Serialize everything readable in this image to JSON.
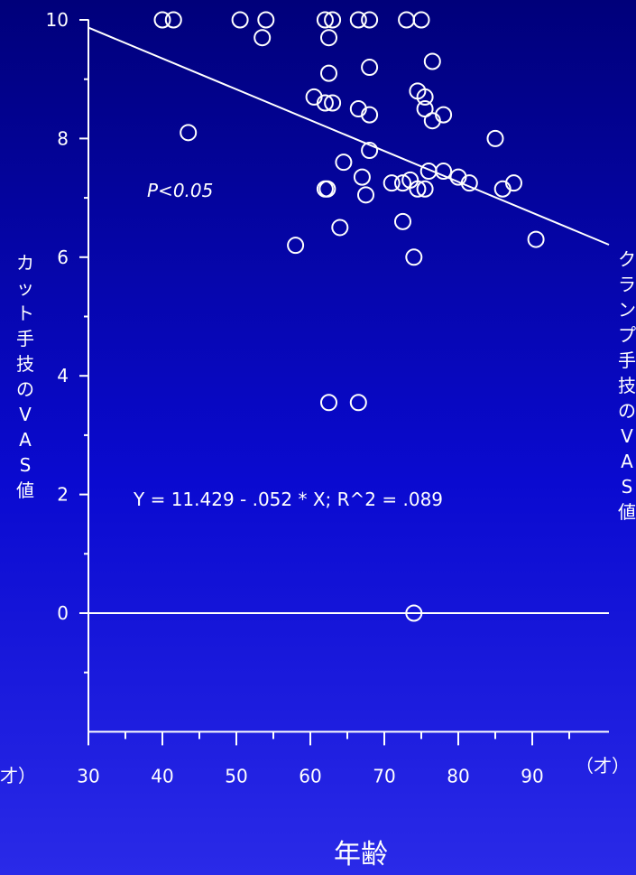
{
  "chart_data": {
    "type": "scatter",
    "xlabel": "年齢",
    "ylabel_left": "カット手技のVAS値",
    "ylabel_right": "クランプ手技のVAS値",
    "x_unit_label": "（才）",
    "x_unit_label_left_fragment": "才）",
    "xlim": [
      30,
      100
    ],
    "ylim": [
      -2,
      10
    ],
    "x_ticks": [
      30,
      40,
      50,
      60,
      70,
      80,
      90
    ],
    "y_ticks": [
      0,
      2,
      4,
      6,
      8,
      10
    ],
    "annotation": "P<0.05",
    "equation": "Y = 11.429 - .052 * X; R^2 = .089",
    "regression": {
      "intercept": 11.429,
      "slope": -0.052
    },
    "reference_line_y": 0,
    "points": [
      [
        40,
        10
      ],
      [
        41.5,
        10
      ],
      [
        50.5,
        10
      ],
      [
        54,
        10
      ],
      [
        62,
        10
      ],
      [
        63,
        10
      ],
      [
        66.5,
        10
      ],
      [
        68,
        10
      ],
      [
        73,
        10
      ],
      [
        75,
        10
      ],
      [
        53.5,
        9.7
      ],
      [
        62.5,
        9.7
      ],
      [
        62.5,
        9.1
      ],
      [
        68,
        9.2
      ],
      [
        76.5,
        9.3
      ],
      [
        60.5,
        8.7
      ],
      [
        62,
        8.6
      ],
      [
        63,
        8.6
      ],
      [
        74.5,
        8.8
      ],
      [
        75.5,
        8.7
      ],
      [
        66.5,
        8.5
      ],
      [
        68,
        8.4
      ],
      [
        75.5,
        8.5
      ],
      [
        76.5,
        8.3
      ],
      [
        78,
        8.4
      ],
      [
        43.5,
        8.1
      ],
      [
        85,
        8.0
      ],
      [
        68,
        7.8
      ],
      [
        64.5,
        7.6
      ],
      [
        62,
        7.15
      ],
      [
        62.3,
        7.15
      ],
      [
        67,
        7.35
      ],
      [
        67.5,
        7.05
      ],
      [
        71,
        7.25
      ],
      [
        72.5,
        7.25
      ],
      [
        73.5,
        7.3
      ],
      [
        74.5,
        7.15
      ],
      [
        75.5,
        7.15
      ],
      [
        76,
        7.45
      ],
      [
        78,
        7.45
      ],
      [
        80,
        7.35
      ],
      [
        81.5,
        7.25
      ],
      [
        86,
        7.15
      ],
      [
        87.5,
        7.25
      ],
      [
        58,
        6.2
      ],
      [
        64,
        6.5
      ],
      [
        72.5,
        6.6
      ],
      [
        74,
        6.0
      ],
      [
        90.5,
        6.3
      ],
      [
        62.5,
        3.55
      ],
      [
        66.5,
        3.55
      ],
      [
        74,
        0
      ]
    ],
    "colors": {
      "marks": "#ffffff",
      "background_top": "#00007a",
      "background_bottom": "#2a2ae8"
    }
  }
}
